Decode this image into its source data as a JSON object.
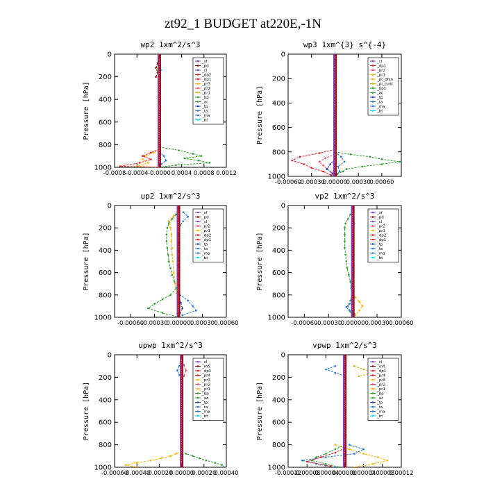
{
  "page": {
    "title": "zt92_1  BUDGET at220E,-1N",
    "ylabel": "Pressure [hPa]"
  },
  "chart_data": [
    {
      "type": "line",
      "title": "wp2  1xm^2/s^3",
      "xlim": [
        -0.0008,
        0.0012
      ],
      "xticks": [
        -0.0008,
        -0.0004,
        0,
        0.0004,
        0.0008,
        0.0012
      ],
      "xticklabels": [
        "-0.0008",
        "-0.0004",
        "-0.0000",
        "0.0004",
        "0.0008",
        "0.0012"
      ],
      "ylim": [
        1000,
        0
      ],
      "yticks": [
        0,
        200,
        400,
        600,
        800,
        1000
      ],
      "legend": "top-right",
      "legend_entries": [
        "_sf",
        "_pd",
        "_cl",
        "_dp2",
        "_dp1",
        "_pr3",
        "_pr2",
        "_pr1",
        "_bp",
        "_ac",
        "_tp",
        "_ta",
        "_ma",
        "_bt"
      ],
      "series": [
        {
          "name": "_dp1",
          "color": "#2ca02c",
          "p": [
            820,
            850,
            880,
            900,
            920,
            940,
            960,
            980,
            1000
          ],
          "x": [
            0,
            0.00035,
            0.0006,
            0.00075,
            0.00045,
            0.0007,
            0.0009,
            0.0003,
            0
          ]
        },
        {
          "name": "_pr3",
          "color": "#ffb000",
          "p": [
            840,
            870,
            900,
            930,
            960,
            990,
            1000
          ],
          "x": [
            0,
            -0.0001,
            -0.00025,
            -0.0003,
            -0.0002,
            -0.0004,
            0
          ]
        },
        {
          "name": "_dp2",
          "color": "#e31a1c",
          "p": [
            840,
            870,
            900,
            930,
            960,
            990,
            1000
          ],
          "x": [
            0,
            -0.00015,
            -0.0003,
            -0.00015,
            -0.00035,
            -0.0007,
            0
          ]
        },
        {
          "name": "_ta",
          "color": "#1f78d4",
          "p": [
            860,
            900,
            940,
            970,
            1000
          ],
          "x": [
            0,
            8e-05,
            0.00012,
            4e-05,
            0
          ]
        },
        {
          "name": "_pd",
          "color": "#8b0000",
          "p": [
            80,
            120,
            160,
            200
          ],
          "x": [
            -3e-05,
            -6e-05,
            -3e-05,
            -6e-05
          ]
        },
        {
          "name": "_pr1",
          "color": "#b8e05a",
          "p": [
            90,
            130,
            170
          ],
          "x": [
            -2e-05,
            -4e-05,
            -2e-05
          ]
        },
        {
          "name": "_bt",
          "color": "#00d8ff",
          "p": [
            100,
            140,
            180
          ],
          "x": [
            2e-05,
            3e-05,
            2e-05
          ]
        }
      ]
    },
    {
      "type": "line",
      "title": "wp3  1xm^{3} s^{-4}",
      "xlim": [
        -0.0006,
        0.00085
      ],
      "xticks": [
        -0.0006,
        -0.0003,
        0,
        0.0003,
        0.0006
      ],
      "xticklabels": [
        "-0.00060",
        "-0.00030",
        "0.00000",
        "0.00030",
        "0.00060"
      ],
      "ylim": [
        1000,
        0
      ],
      "yticks": [
        0,
        200,
        400,
        600,
        800,
        1000
      ],
      "legend": "top-right",
      "legend_entries": [
        "_cl",
        "_dp1",
        "_pr2",
        "_pr1",
        "_pr_dfsn",
        "_pr_turb",
        "_bp1",
        "_ac",
        "_tp",
        "_ta",
        "_ma",
        "_bt"
      ],
      "series": [
        {
          "name": "_bp1",
          "color": "#2ca02c",
          "p": [
            800,
            820,
            840,
            860,
            880,
            900,
            920,
            940,
            960,
            980,
            1000
          ],
          "x": [
            0,
            0.0002,
            0.00045,
            0.0006,
            0.00083,
            0.0006,
            0.00035,
            0.00015,
            0.0001,
            3e-05,
            0
          ]
        },
        {
          "name": "_dp1",
          "color": "#e31a1c",
          "p": [
            780,
            810,
            840,
            870,
            900,
            930,
            960,
            990,
            1000
          ],
          "x": [
            0,
            -0.0002,
            -0.00045,
            -0.00055,
            -0.0004,
            -0.0003,
            -0.00015,
            -5e-05,
            0
          ]
        },
        {
          "name": "_pr2",
          "color": "#ff4060",
          "p": [
            820,
            850,
            880,
            910,
            940,
            970,
            1000
          ],
          "x": [
            0,
            -0.00012,
            -0.0002,
            -0.00015,
            -0.0001,
            -4e-05,
            0
          ]
        },
        {
          "name": "_ta",
          "color": "#1f78d4",
          "p": [
            800,
            840,
            880,
            920,
            960,
            1000
          ],
          "x": [
            0,
            8e-05,
            0.00012,
            4e-05,
            6e-05,
            0
          ]
        },
        {
          "name": "_tp",
          "color": "#1a3fb0",
          "p": [
            860,
            900,
            940,
            980
          ],
          "x": [
            0,
            -6e-05,
            -0.0001,
            -3e-05
          ]
        }
      ]
    },
    {
      "type": "line",
      "title": "up2  1xm^2/s^3",
      "xlim": [
        -0.0008,
        0.0006
      ],
      "xticks": [
        -0.0006,
        -0.0003,
        0,
        0.0003,
        0.0006
      ],
      "xticklabels": [
        "-0.00060",
        "-0.00030",
        "0.00000",
        "0.00030",
        "0.00060"
      ],
      "ylim": [
        1000,
        0
      ],
      "yticks": [
        0,
        200,
        400,
        600,
        800,
        1000
      ],
      "legend": "top-right",
      "legend_entries": [
        "_sf",
        "_pd",
        "_cl",
        "_pr2",
        "_pr1",
        "_dp2",
        "_dp1",
        "_tp",
        "_ta",
        "_ma",
        "_bt"
      ],
      "series": [
        {
          "name": "_dp1",
          "color": "#2ca02c",
          "p": [
            80,
            120,
            160,
            200,
            260,
            320,
            380,
            440,
            500,
            560,
            620,
            680,
            740,
            800,
            840,
            880,
            920,
            960,
            1000
          ],
          "x": [
            -3e-05,
            -8e-05,
            -0.00012,
            -0.00014,
            -0.00015,
            -0.00015,
            -0.00014,
            -0.00013,
            -0.00012,
            -0.0001,
            -8e-05,
            -5e-05,
            -3e-05,
            -0.0001,
            -0.0002,
            -0.0003,
            -0.00038,
            -0.0002,
            0
          ]
        },
        {
          "name": "_pr2",
          "color": "#ffb000",
          "p": [
            90,
            140,
            200,
            260,
            320,
            380,
            440,
            500,
            600,
            700,
            780,
            860,
            900,
            940,
            980
          ],
          "x": [
            -6e-05,
            -0.00012,
            -0.0001,
            -9e-05,
            -9e-05,
            -8e-05,
            -8e-05,
            -7e-05,
            -6e-05,
            -4e-05,
            -2e-05,
            0,
            2e-05,
            0,
            0
          ]
        },
        {
          "name": "_ta",
          "color": "#1f78d4",
          "p": [
            60,
            100,
            140,
            180,
            220,
            300,
            400,
            500,
            600,
            700,
            800,
            850,
            900,
            940,
            980
          ],
          "x": [
            6e-05,
            0.00012,
            6e-05,
            2e-05,
            0,
            0,
            0,
            0,
            0,
            0,
            2e-05,
            0.00012,
            0.00018,
            0.00022,
            5e-05
          ]
        },
        {
          "name": "_tp",
          "color": "#1a3fb0",
          "p": [
            820,
            870,
            920,
            960
          ],
          "x": [
            0,
            3e-05,
            5e-05,
            2e-05
          ]
        }
      ]
    },
    {
      "type": "line",
      "title": "vp2  1xm^2/s^3",
      "xlim": [
        -0.0008,
        0.0006
      ],
      "xticks": [
        -0.0006,
        -0.0003,
        0,
        0.0003,
        0.0006
      ],
      "xticklabels": [
        "-0.00060",
        "-0.00030",
        "0.00000",
        "0.00030",
        "0.00060"
      ],
      "ylim": [
        1000,
        0
      ],
      "yticks": [
        0,
        200,
        400,
        600,
        800,
        1000
      ],
      "legend": "top-right",
      "legend_entries": [
        "_sf",
        "_pd",
        "_cl",
        "_pr2",
        "_pr1",
        "_dp2",
        "_dp1",
        "_tp",
        "_ta",
        "_ma",
        "_bt"
      ],
      "series": [
        {
          "name": "_dp1",
          "color": "#2ca02c",
          "p": [
            80,
            120,
            160,
            200,
            260,
            320,
            380,
            440,
            500,
            560,
            620,
            680,
            740,
            800,
            850,
            900,
            950,
            1000
          ],
          "x": [
            -3e-05,
            -6e-05,
            -9e-05,
            -0.0001,
            -0.0001,
            -0.0001,
            -0.0001,
            -9e-05,
            -8e-05,
            -7e-05,
            -5e-05,
            -3e-05,
            -2e-05,
            -1e-05,
            -3e-05,
            -6e-05,
            -3e-05,
            0
          ]
        },
        {
          "name": "_pr2",
          "color": "#ffb000",
          "p": [
            820,
            860,
            900,
            940,
            980
          ],
          "x": [
            3e-05,
            8e-05,
            0.00012,
            8e-05,
            3e-05
          ]
        },
        {
          "name": "_ta",
          "color": "#1f78d4",
          "p": [
            850,
            880,
            910,
            940,
            970,
            1000
          ],
          "x": [
            0,
            -4e-05,
            -8e-05,
            -4e-05,
            2e-05,
            0
          ]
        },
        {
          "name": "_bt",
          "color": "#00d8ff",
          "p": [
            100,
            160,
            220
          ],
          "x": [
            1e-05,
            2e-05,
            1e-05
          ]
        }
      ]
    },
    {
      "type": "line",
      "title": "upwp  1xm^2/s^3",
      "xlim": [
        -0.0006,
        0.0004
      ],
      "xticks": [
        -0.0006,
        -0.0004,
        -0.0002,
        0,
        0.0002,
        0.0004
      ],
      "xticklabels": [
        "-0.00060",
        "-0.00040",
        "-0.00020",
        "0.00000",
        "0.00020",
        "0.00040"
      ],
      "ylim": [
        1000,
        0
      ],
      "yticks": [
        0,
        200,
        400,
        600,
        800,
        1000
      ],
      "legend": "top-right",
      "legend_entries": [
        "_cl",
        "_mfl",
        "_dp1",
        "_pr4",
        "_pr3",
        "_pr2",
        "_pr1",
        "_bp",
        "_ac",
        "_tp",
        "_ta",
        "_ma",
        "_bt"
      ],
      "series": [
        {
          "name": "_pr1",
          "color": "#ffb000",
          "p": [
            860,
            880,
            900,
            920,
            940,
            960,
            980,
            1000
          ],
          "x": [
            0,
            -5e-05,
            -0.0001,
            -0.00018,
            -0.00028,
            -0.0004,
            -0.0005,
            -0.0004
          ]
        },
        {
          "name": "_bp",
          "color": "#2ca02c",
          "p": [
            860,
            880,
            900,
            920,
            940,
            960,
            980,
            1000
          ],
          "x": [
            0,
            4e-05,
            0.0001,
            0.00016,
            0.00022,
            0.0003,
            0.00036,
            0.00038
          ]
        },
        {
          "name": "_ta",
          "color": "#1f78d4",
          "p": [
            100,
            140,
            180,
            220
          ],
          "x": [
            -2e-05,
            -4e-05,
            -2e-05,
            0
          ]
        },
        {
          "name": "_pr2",
          "color": "#ff4060",
          "p": [
            90,
            140,
            190
          ],
          "x": [
            2e-05,
            4e-05,
            2e-05
          ]
        }
      ]
    },
    {
      "type": "line",
      "title": "vpwp  1xm^2/s^3",
      "xlim": [
        -0.00012,
        0.00012
      ],
      "xticks": [
        -0.00012,
        -8e-05,
        -4e-05,
        0,
        4e-05,
        8e-05,
        0.00012
      ],
      "xticklabels": [
        "-0.00012",
        "-0.00008",
        "-0.00004",
        "0.00000",
        "0.00004",
        "0.00008",
        "0.00012"
      ],
      "ylim": [
        1000,
        0
      ],
      "yticks": [
        0,
        200,
        400,
        600,
        800,
        1000
      ],
      "legend": "top-right",
      "legend_entries": [
        "_cl",
        "_mfl",
        "_dp1",
        "_pr4",
        "_pr3",
        "_pr2",
        "_pr1",
        "_bp",
        "_ac",
        "_tp",
        "_ta",
        "_ma",
        "_bt"
      ],
      "series": [
        {
          "name": "_pr1",
          "color": "#ffb000",
          "p": [
            800,
            840,
            880,
            910,
            940,
            970,
            1000
          ],
          "x": [
            -2e-05,
            1e-05,
            4e-05,
            7e-05,
            9e-05,
            6e-05,
            2e-05
          ]
        },
        {
          "name": "_bp",
          "color": "#2ca02c",
          "p": [
            800,
            840,
            880,
            910,
            940,
            970,
            1000
          ],
          "x": [
            0,
            -2e-05,
            -4e-05,
            -6e-05,
            -7e-05,
            -4e-05,
            -1e-05
          ]
        },
        {
          "name": "_ta",
          "color": "#1f78d4",
          "p": [
            800,
            840,
            880,
            910,
            940,
            970,
            1000
          ],
          "x": [
            1e-05,
            4e-05,
            2e-05,
            -4e-05,
            -9e-05,
            -6e-05,
            -2e-05
          ]
        },
        {
          "name": "_pr3",
          "color": "#e31a1c",
          "p": [
            830,
            870,
            910,
            950,
            990
          ],
          "x": [
            0,
            -2e-05,
            -5e-05,
            -8e-05,
            -3e-05
          ]
        },
        {
          "name": "_pr2",
          "color": "#d0b000",
          "p": [
            100,
            130,
            160,
            190
          ],
          "x": [
            2e-05,
            4e-05,
            6e-05,
            3e-05
          ]
        },
        {
          "name": "_dp1",
          "color": "#1f78d4",
          "p": [
            100,
            130,
            160,
            190
          ],
          "x": [
            -2e-05,
            -4e-05,
            -2e-05,
            0
          ]
        }
      ]
    }
  ],
  "legend_colors": {
    "_sf": "#7b3fbf",
    "_pd": "#8b0000",
    "_cl": "#7b3fbf",
    "_dp2": "#e31a1c",
    "_dp1": "#e31a1c",
    "_pr3": "#ffb000",
    "_pr2": "#ff4060",
    "_pr1": "#ffb000",
    "_bp": "#2ca02c",
    "_bp1": "#2ca02c",
    "_ac": "#2ca02c",
    "_tp": "#1a3fb0",
    "_ta": "#1f78d4",
    "_ma": "#1f78d4",
    "_bt": "#00d8ff",
    "_mfl": "#8b0000",
    "_pr4": "#e31a1c",
    "_pr_dfsn": "#ffb000",
    "_pr_turb": "#d0b000"
  }
}
